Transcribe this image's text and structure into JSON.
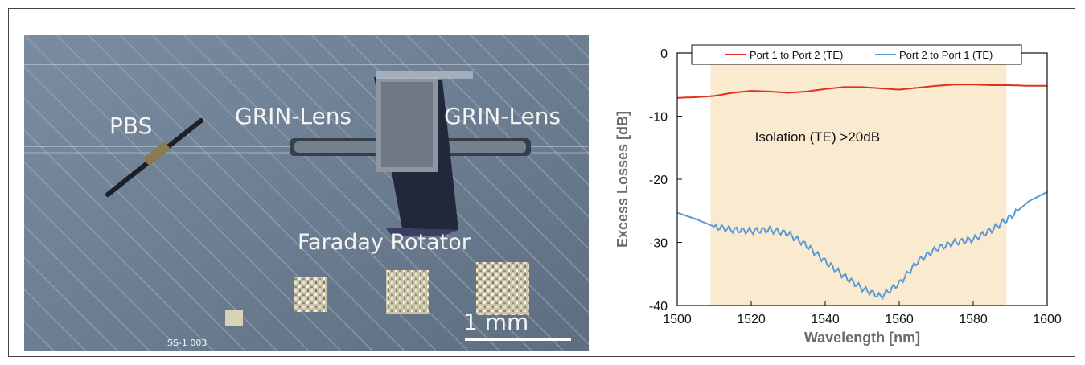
{
  "micrograph": {
    "labels": {
      "pbs": "PBS",
      "grin_left": "GRIN-Lens",
      "grin_right": "GRIN-Lens",
      "rotator": "Faraday Rotator",
      "scale": "1 mm",
      "chip_mark": "SS-1 003"
    }
  },
  "chart_data": {
    "type": "line",
    "title": "",
    "xlabel": "Wavelength [nm]",
    "ylabel": "Excess Losses [dB]",
    "xlim": [
      1500,
      1600
    ],
    "ylim": [
      -40,
      0
    ],
    "xticks": [
      1500,
      1520,
      1540,
      1560,
      1580,
      1600
    ],
    "yticks": [
      0,
      -10,
      -20,
      -30,
      -40
    ],
    "grid": false,
    "legend_placement": "top",
    "highlight_band": {
      "x": [
        1509,
        1589
      ],
      "color": "#faebd0"
    },
    "annotation": "Isolation (TE) >20dB",
    "series": [
      {
        "name": "Port 1 to Port 2 (TE)",
        "color": "#e0301e",
        "x": [
          1500,
          1505,
          1510,
          1515,
          1520,
          1525,
          1530,
          1535,
          1540,
          1545,
          1550,
          1555,
          1560,
          1565,
          1570,
          1575,
          1580,
          1585,
          1590,
          1595,
          1600
        ],
        "y": [
          -7.1,
          -7.0,
          -6.8,
          -6.3,
          -6.0,
          -6.1,
          -6.3,
          -6.1,
          -5.7,
          -5.4,
          -5.4,
          -5.6,
          -5.8,
          -5.5,
          -5.2,
          -5.0,
          -5.0,
          -5.1,
          -5.1,
          -5.2,
          -5.2
        ]
      },
      {
        "name": "Port 2 to Port 1 (TE)",
        "color": "#5b9bd5",
        "x": [
          1500,
          1505,
          1510,
          1515,
          1520,
          1525,
          1530,
          1535,
          1540,
          1545,
          1550,
          1555,
          1560,
          1565,
          1570,
          1575,
          1580,
          1585,
          1590,
          1595,
          1600
        ],
        "y": [
          -25.3,
          -26.3,
          -27.5,
          -28.0,
          -28.2,
          -28.0,
          -28.6,
          -30.5,
          -33.0,
          -35.3,
          -37.3,
          -38.6,
          -36.5,
          -33.0,
          -31.0,
          -30.0,
          -29.5,
          -28.0,
          -26.0,
          -23.5,
          -22.0
        ]
      }
    ]
  }
}
